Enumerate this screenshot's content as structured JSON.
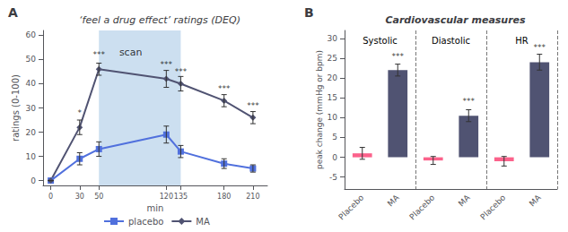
{
  "chart_data": [
    {
      "type": "line",
      "panel_label": "A",
      "title": "‘feel a drug effect’ ratings (DEQ)",
      "xlabel": "min",
      "ylabel": "ratings (0-100)",
      "xlim": [
        -8,
        225
      ],
      "ylim": [
        -2,
        62
      ],
      "xticks": [
        0,
        30,
        50,
        120,
        135,
        180,
        210
      ],
      "yticks": [
        0,
        10,
        20,
        30,
        40,
        50,
        60
      ],
      "grid": false,
      "legend": "bottom",
      "x": [
        0,
        30,
        50,
        120,
        135,
        180,
        210
      ],
      "series": [
        {
          "name": "placebo",
          "marker": "square",
          "values": [
            0,
            9,
            13,
            19,
            12,
            7,
            5
          ],
          "errors": [
            0.01,
            2.5,
            3.0,
            3.5,
            2.5,
            2.0,
            1.5
          ]
        },
        {
          "name": "MA",
          "marker": "diamond",
          "values": [
            0,
            22,
            46,
            42,
            40,
            33,
            26
          ],
          "errors": [
            0.01,
            3.0,
            2.5,
            3.5,
            3.0,
            2.5,
            2.5
          ]
        }
      ],
      "shaded_region": {
        "from": 50,
        "to": 135,
        "color": "#ccdff0",
        "label": "scan",
        "label_x": 83,
        "label_y": 53
      },
      "annotations": [
        {
          "text": "*",
          "x": 30,
          "y": 26
        },
        {
          "text": "***",
          "x": 50,
          "y": 50
        },
        {
          "text": "***",
          "x": 120,
          "y": 46
        },
        {
          "text": "***",
          "x": 135,
          "y": 43
        },
        {
          "text": "***",
          "x": 180,
          "y": 36
        },
        {
          "text": "***",
          "x": 210,
          "y": 29
        }
      ]
    },
    {
      "type": "bar",
      "panel_label": "B",
      "title": "Cardiovascular measures",
      "ylabel": "peak change (mmHg or bpm)",
      "ylim": [
        -8,
        32
      ],
      "yticks": [
        -5,
        0,
        5,
        10,
        15,
        20,
        25,
        30
      ],
      "grid": false,
      "groups": [
        "Systolic",
        "Diastolic",
        "HR"
      ],
      "series": [
        {
          "name": "Placebo",
          "values": [
            1.0,
            -0.8,
            -1.0
          ],
          "errors": [
            1.5,
            1.0,
            1.2
          ]
        },
        {
          "name": "MA",
          "values": [
            22.0,
            10.5,
            24.0
          ],
          "errors": [
            1.5,
            1.5,
            2.0
          ],
          "annotations": [
            "***",
            "***",
            "***"
          ],
          "annotation_y": [
            24.2,
            12.8,
            26.5
          ]
        }
      ]
    }
  ]
}
